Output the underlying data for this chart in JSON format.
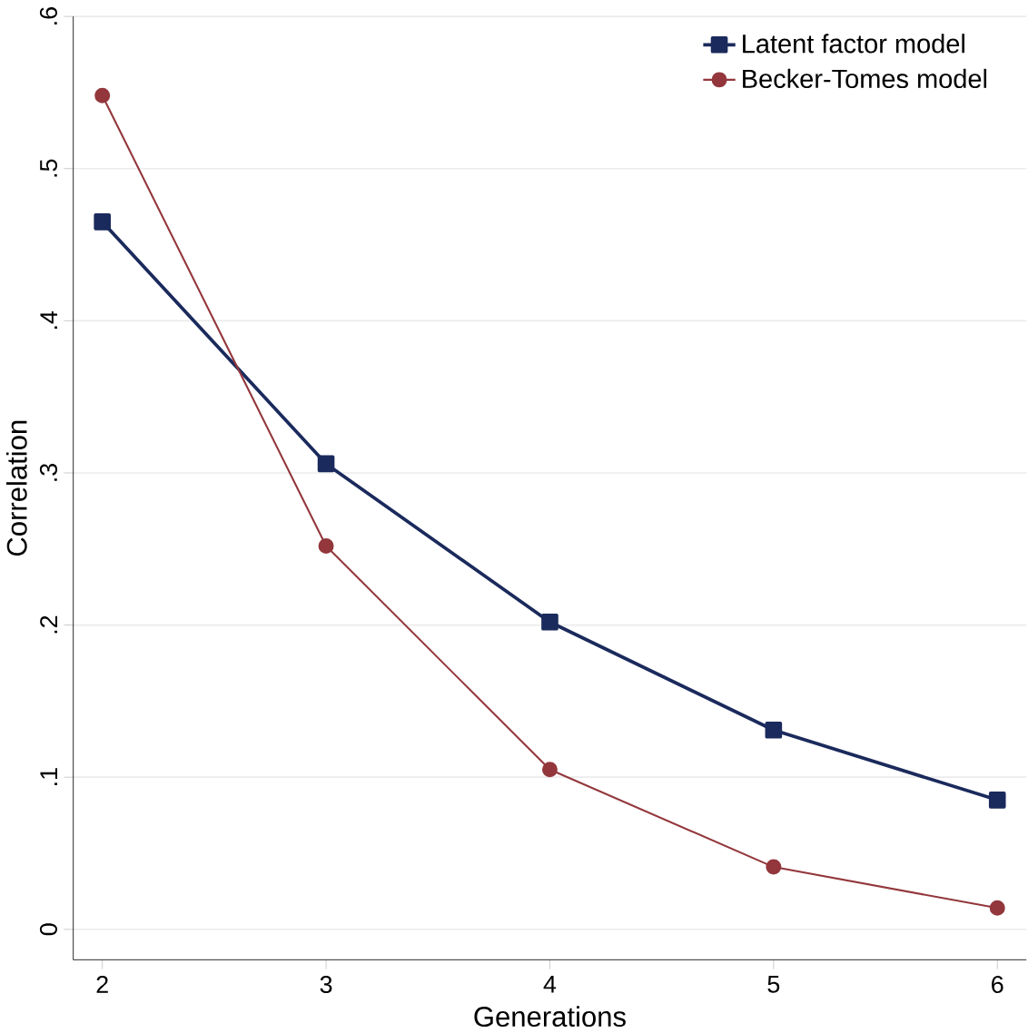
{
  "chart_data": {
    "type": "line",
    "xlabel": "Generations",
    "ylabel": "Correlation",
    "x": [
      2,
      3,
      4,
      5,
      6
    ],
    "series": [
      {
        "name": "Latent factor model",
        "color": "#1b2a5c",
        "values": [
          0.465,
          0.306,
          0.202,
          0.131,
          0.085
        ],
        "marker": "square"
      },
      {
        "name": "Becker-Tomes model",
        "color": "#93373c",
        "values": [
          0.548,
          0.252,
          0.105,
          0.041,
          0.014
        ],
        "marker": "circle"
      }
    ],
    "xlim": [
      1.87,
      6.13
    ],
    "ylim": [
      -0.02,
      0.6
    ],
    "xticks": [
      2,
      3,
      4,
      5,
      6
    ],
    "yticks": [
      0,
      {
        "value": 0.1,
        "label": ".1"
      },
      {
        "value": 0.2,
        "label": ".2"
      },
      {
        "value": 0.3,
        "label": ".3"
      },
      {
        "value": 0.4,
        "label": ".4"
      },
      {
        "value": 0.5,
        "label": ".5"
      },
      {
        "value": 0.6,
        "label": ".6"
      }
    ],
    "grid": "y",
    "legend": "top right",
    "line_style": "solid"
  }
}
